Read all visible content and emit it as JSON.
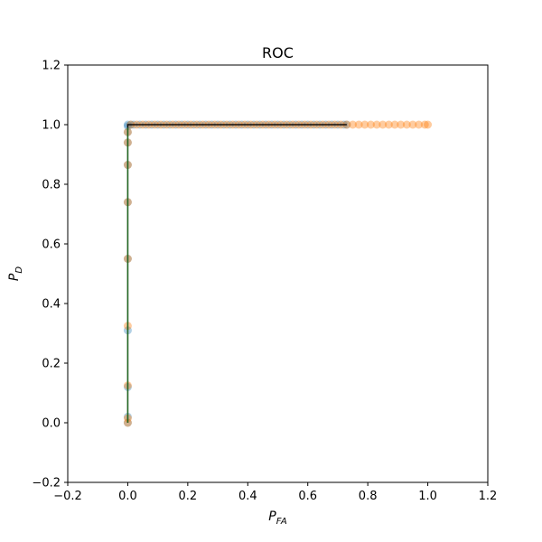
{
  "chart_data": {
    "type": "scatter",
    "title": "ROC",
    "xlabel": {
      "main": "P",
      "sub": "FA"
    },
    "ylabel": {
      "main": "P",
      "sub": "D"
    },
    "xlim": [
      -0.2,
      1.2
    ],
    "ylim": [
      -0.2,
      1.2
    ],
    "xticks": [
      -0.2,
      0.0,
      0.2,
      0.4,
      0.6,
      0.8,
      1.0,
      1.2
    ],
    "yticks": [
      -0.2,
      0.0,
      0.2,
      0.4,
      0.6,
      0.8,
      1.0,
      1.2
    ],
    "xtick_labels": [
      "−0.2",
      "0.0",
      "0.2",
      "0.4",
      "0.6",
      "0.8",
      "1.0",
      "1.2"
    ],
    "ytick_labels": [
      "−0.2",
      "0.0",
      "0.2",
      "0.4",
      "0.6",
      "0.8",
      "1.0",
      "1.2"
    ],
    "grid": false,
    "series": [
      {
        "kind": "points",
        "color": "#1f77b4",
        "opacity": 0.35,
        "x": [
          0,
          0,
          0,
          0,
          0,
          0,
          0,
          0,
          0,
          0,
          0,
          0.01,
          0.02,
          0.04,
          0.06,
          0.08,
          0.1,
          0.12,
          0.14,
          0.16,
          0.18,
          0.2,
          0.22,
          0.24,
          0.26,
          0.28,
          0.3,
          0.32,
          0.34,
          0.36,
          0.38,
          0.4,
          0.42,
          0.44,
          0.46,
          0.48,
          0.5,
          0.52,
          0.54,
          0.56,
          0.58,
          0.6,
          0.62,
          0.64,
          0.66,
          0.68,
          0.7,
          0.72,
          0.73
        ],
        "y": [
          0,
          0.02,
          0.12,
          0.31,
          0.55,
          0.74,
          0.865,
          0.94,
          0.975,
          0.995,
          1,
          1,
          1,
          1,
          1,
          1,
          1,
          1,
          1,
          1,
          1,
          1,
          1,
          1,
          1,
          1,
          1,
          1,
          1,
          1,
          1,
          1,
          1,
          1,
          1,
          1,
          1,
          1,
          1,
          1,
          1,
          1,
          1,
          1,
          1,
          1,
          1,
          1,
          1
        ]
      },
      {
        "kind": "points",
        "color": "#ff7f0e",
        "opacity": 0.4,
        "x": [
          0,
          0,
          0,
          0,
          0,
          0,
          0,
          0,
          0,
          0.01,
          0.03,
          0.05,
          0.07,
          0.09,
          0.11,
          0.13,
          0.15,
          0.17,
          0.19,
          0.21,
          0.23,
          0.25,
          0.27,
          0.29,
          0.31,
          0.33,
          0.35,
          0.37,
          0.39,
          0.41,
          0.43,
          0.45,
          0.47,
          0.49,
          0.51,
          0.53,
          0.55,
          0.57,
          0.59,
          0.61,
          0.63,
          0.65,
          0.67,
          0.69,
          0.71,
          0.73,
          0.75,
          0.77,
          0.79,
          0.81,
          0.83,
          0.85,
          0.87,
          0.89,
          0.91,
          0.93,
          0.95,
          0.97,
          0.99,
          1.0
        ],
        "y": [
          0,
          0.015,
          0.125,
          0.325,
          0.55,
          0.74,
          0.865,
          0.94,
          0.975,
          1,
          1,
          1,
          1,
          1,
          1,
          1,
          1,
          1,
          1,
          1,
          1,
          1,
          1,
          1,
          1,
          1,
          1,
          1,
          1,
          1,
          1,
          1,
          1,
          1,
          1,
          1,
          1,
          1,
          1,
          1,
          1,
          1,
          1,
          1,
          1,
          1,
          1,
          1,
          1,
          1,
          1,
          1,
          1,
          1,
          1,
          1,
          1,
          1,
          1,
          1
        ]
      },
      {
        "kind": "line",
        "color": "#000000",
        "opacity": 0.9,
        "x": [
          0,
          0,
          0.73
        ],
        "y": [
          0,
          1,
          1
        ]
      },
      {
        "kind": "line",
        "color": "#2ca02c",
        "opacity": 0.6,
        "x": [
          0,
          0
        ],
        "y": [
          0,
          0.99
        ]
      }
    ]
  }
}
